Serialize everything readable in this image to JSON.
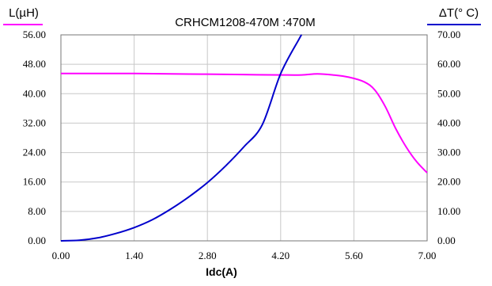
{
  "chart_data": {
    "type": "line",
    "title": "CRHCM1208-470M :470M",
    "xlabel": "Idc(A)",
    "ylabel_left": "L(µH)",
    "ylabel_right": "ΔT(° C)",
    "xlim": [
      0,
      7.0
    ],
    "ylim_left": [
      0,
      56
    ],
    "ylim_right": [
      0,
      70
    ],
    "x_ticks": [
      "0.00",
      "1.40",
      "2.80",
      "4.20",
      "5.60",
      "7.00"
    ],
    "y_left_ticks": [
      "0.00",
      "8.00",
      "16.00",
      "24.00",
      "32.00",
      "40.00",
      "48.00",
      "56.00"
    ],
    "y_right_ticks": [
      "0.00",
      "10.00",
      "20.00",
      "30.00",
      "40.00",
      "50.00",
      "60.00",
      "70.00"
    ],
    "grid": true,
    "colors": {
      "inductance": "#ff00ff",
      "temperature": "#0000cc",
      "left_axis_line": "#ff00ff",
      "right_axis_line": "#0000cc"
    },
    "series": [
      {
        "axis": "left",
        "x": [
          0.0,
          0.7,
          1.4,
          2.1,
          2.8,
          3.5,
          4.2,
          4.6,
          4.9,
          5.2,
          5.5,
          5.8,
          6.0,
          6.2,
          6.4,
          6.6,
          6.8,
          7.0
        ],
        "values": [
          45.5,
          45.5,
          45.5,
          45.4,
          45.3,
          45.2,
          45.1,
          45.1,
          45.4,
          45.1,
          44.5,
          43.2,
          41.0,
          36.5,
          30.5,
          25.5,
          21.5,
          18.5
        ]
      },
      {
        "axis": "right",
        "x": [
          0.0,
          0.35,
          0.7,
          1.05,
          1.4,
          1.75,
          2.1,
          2.45,
          2.8,
          3.15,
          3.5,
          3.85,
          4.2,
          4.55,
          4.6
        ],
        "values": [
          0.0,
          0.2,
          1.0,
          2.5,
          4.5,
          7.2,
          10.8,
          15.0,
          19.8,
          25.5,
          32.0,
          39.5,
          56.8,
          68.5,
          70.0
        ]
      }
    ]
  }
}
